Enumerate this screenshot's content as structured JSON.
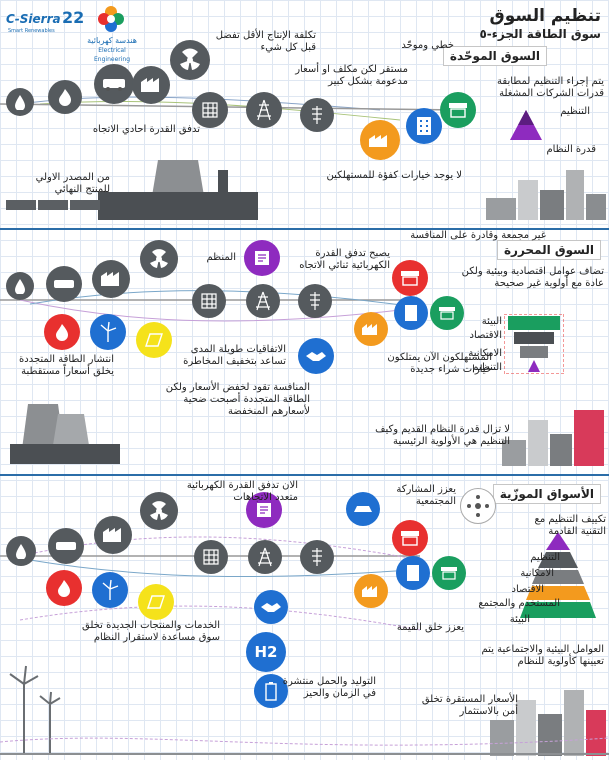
{
  "header": {
    "title": "تنظيم السوق",
    "subtitle": "سوق الطاقة الجزء-٥",
    "brand_c_sierra": "C-Sierra",
    "brand_num": "22",
    "brand_small": "Smart Renewables",
    "brand_ar": "هندسة كهربائية",
    "brand_en": "Electrical Engineering"
  },
  "section1": {
    "label": "السوق الموحّدة",
    "callouts": {
      "cost": "تكلفة الإنتاج الأقل تفضل قبل كل شيء",
      "linear": "خطي وموحّد",
      "expensive": "مستقر لكن مكلف او أسعار مدعومة بشكل كبير",
      "one_way": "تدفق القدرة احادي الاتجاه",
      "source_to_end": "من المصدر الاولي للمنتج النهائي",
      "regulation": "يتم إجراء التنظيم لمطابقة قدرات الشركات المشغلة",
      "reg_label": "التنظيم",
      "power_label": "قدرة النظام",
      "no_choice": "لا يوجد خيارات كفؤة للمستهلكين"
    }
  },
  "section2": {
    "label": "السوق المحررة",
    "callouts": {
      "competition": "غير مجمعة وقادرة على المنافسة",
      "regulator": "المنظم",
      "bidirectional": "يصبح تدفق القدرة الكهربائية ثنائي الاتجاه",
      "factors": "تضاف عوامل اقتصادية وبيئية ولكن عادة مع أولوية غير صحيحة",
      "renewables": "انتشار الطاقة المتجددة يخلق أسعاراً مستقطبة",
      "contracts": "الاتفاقيات طويلة المدى تساعد بتخفيف المخاطرة",
      "consumers": "المستهلكون الآن يمتلكون خيارات شراء جديدة",
      "competition_price": "المنافسة تقود لخفض الأسعار ولكن الطاقة المتجددة أصبحت ضحية لأسعارهم المنخفضة",
      "legacy": "لا تزال قدرة النظام القديم وكيف التنظيم هي الأولوية الرئيسية",
      "pyr_env": "البيئة",
      "pyr_econ": "الاقتصاد",
      "pyr_cap": "الامكانية",
      "pyr_reg": "التنظيم"
    }
  },
  "section3": {
    "label": "الأسواق الموزّية",
    "callouts": {
      "multi_dir": "الان تدفق القدرة الكهربائية متعدد الاتجاهات",
      "community": "يعزز المشاركة المجتمعية",
      "adapt": "تكييف التنظيم مع التقنية القادمة",
      "pyr_reg": "التنظيم",
      "pyr_cap": "الامكانية",
      "pyr_econ": "الاقتصاد",
      "pyr_user": "المستخدم والمجتمع",
      "pyr_env": "البيئة",
      "value": "يعزز خلق القيمة",
      "services": "الخدمات والمنتجات الجديدة تخلق سوق مساعدة لاستقرار النظام",
      "distributed": "التوليد والحمل منتشرة في الزمان والحيز",
      "env_social": "العوامل البيئية والاجتماعية يتم تعيينها كأولوية للنظام",
      "stable_prices": "الأسعار المستقرة تخلق أمن بالاستثمار",
      "h2": "H2"
    }
  },
  "colors": {
    "dark_circle": "#555a5e",
    "green": "#1a9e5f",
    "blue": "#1f6fd1",
    "purple": "#8e2bbf",
    "orange": "#f39a1e",
    "red": "#e8302f",
    "yellow": "#f5e21b",
    "grid_line": "#dfe7f2",
    "divider": "#2b6da8"
  }
}
